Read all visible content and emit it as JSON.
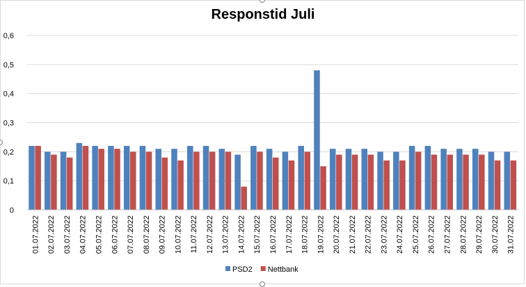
{
  "chart_data": {
    "type": "bar",
    "title": "Responstid Juli",
    "xlabel": "",
    "ylabel": "",
    "ylim": [
      0,
      0.6
    ],
    "yticks": [
      "0",
      "0,1",
      "0,2",
      "0,3",
      "0,4",
      "0,5",
      "0,6"
    ],
    "grid": true,
    "legend_position": "bottom",
    "categories": [
      "01.07.2022",
      "02.07.2022",
      "03.07.2022",
      "04.07.2022",
      "05.07.2022",
      "06.07.2022",
      "07.07.2022",
      "08.07.2022",
      "09.07.2022",
      "10.07.2022",
      "11.07.2022",
      "12.07.2022",
      "13.07.2022",
      "14.07.2022",
      "15.07.2022",
      "16.07.2022",
      "17.07.2022",
      "18.07.2022",
      "19.07.2022",
      "20.07.2022",
      "21.07.2022",
      "22.07.2022",
      "23.07.2022",
      "24.07.2022",
      "25.07.2022",
      "26.07.2022",
      "27.07.2022",
      "28.07.2022",
      "29.07.2022",
      "30.07.2022",
      "31.07.2022"
    ],
    "series": [
      {
        "name": "PSD2",
        "color": "#4f81bd",
        "values": [
          0.22,
          0.2,
          0.2,
          0.23,
          0.22,
          0.22,
          0.22,
          0.22,
          0.21,
          0.21,
          0.22,
          0.22,
          0.21,
          0.19,
          0.22,
          0.21,
          0.2,
          0.22,
          0.48,
          0.21,
          0.21,
          0.21,
          0.2,
          0.2,
          0.22,
          0.22,
          0.21,
          0.21,
          0.21,
          0.2,
          0.2
        ]
      },
      {
        "name": "Nettbank",
        "color": "#c0504d",
        "values": [
          0.22,
          0.19,
          0.18,
          0.22,
          0.21,
          0.21,
          0.2,
          0.2,
          0.18,
          0.17,
          0.2,
          0.2,
          0.2,
          0.08,
          0.2,
          0.18,
          0.17,
          0.2,
          0.15,
          0.19,
          0.19,
          0.19,
          0.17,
          0.17,
          0.2,
          0.19,
          0.19,
          0.19,
          0.19,
          0.17,
          0.17
        ]
      }
    ]
  }
}
